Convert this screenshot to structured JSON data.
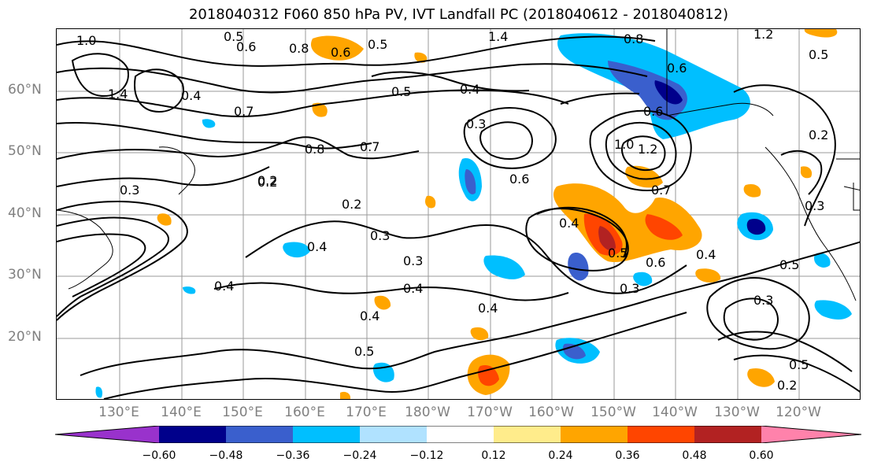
{
  "title": "2018040312 F060 850 hPa PV, IVT Landfall PC (2018040612 - 2018040812)",
  "lat_labels": [
    "60°N",
    "50°N",
    "40°N",
    "30°N",
    "20°N"
  ],
  "lon_labels": [
    "130°E",
    "140°E",
    "150°E",
    "160°E",
    "170°E",
    "180°W",
    "170°W",
    "160°W",
    "150°W",
    "140°W",
    "130°W",
    "120°W"
  ],
  "colorbar": {
    "colors": [
      "#9932cc",
      "#00008b",
      "#3a5fcd",
      "#00bfff",
      "#b0e2ff",
      "#ffffff",
      "#ffec8b",
      "#ffa500",
      "#ff4500",
      "#b22222",
      "#ff82ab"
    ],
    "tick_labels": [
      "−0.60",
      "−0.48",
      "−0.36",
      "−0.24",
      "−0.12",
      "0.12",
      "0.24",
      "0.36",
      "0.48",
      "0.60"
    ]
  },
  "contour_labels": [
    "1.0",
    "0.6",
    "0.5",
    "0.8",
    "0.6",
    "0.5",
    "1.4",
    "0.8",
    "0.5",
    "1.2",
    "1.4",
    "0.4",
    "0.5",
    "0.4",
    "0.2",
    "0.6",
    "0.3",
    "0.7",
    "0.8",
    "0.7",
    "0.6",
    "1.0",
    "1.2",
    "0.3",
    "0.2",
    "0.3",
    "0.2",
    "0.6",
    "0.7",
    "0.4",
    "0.3",
    "0.4",
    "0.5",
    "0.4",
    "0.6",
    "0.4",
    "0.4",
    "0.3",
    "0.4",
    "0.4",
    "0.5",
    "0.3",
    "0.3",
    "0.5",
    "0.2",
    "0.2",
    "0.5"
  ]
}
